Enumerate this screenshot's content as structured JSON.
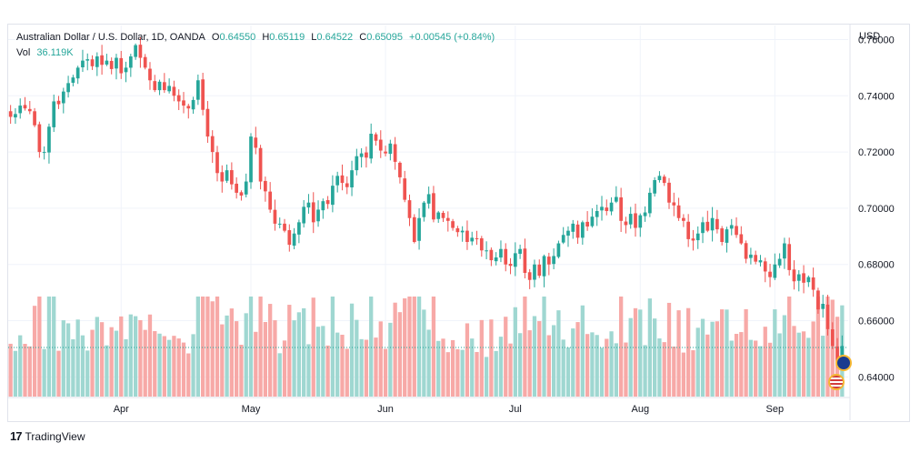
{
  "header": {
    "symbol": "Australian Dollar / U.S. Dollar, 1D, OANDA",
    "o_label": "O",
    "o_value": "0.64550",
    "h_label": "H",
    "h_value": "0.65119",
    "l_label": "L",
    "l_value": "0.64522",
    "c_label": "C",
    "c_value": "0.65095",
    "change": "+0.00545 (+0.84%)",
    "vol_label": "Vol",
    "vol_value": "36.119K"
  },
  "currency": "USD",
  "brand": {
    "logo": "17",
    "name": "TradingView"
  },
  "colors": {
    "up": "#26a69a",
    "down": "#ef5350",
    "vol_up": "#9fd7d1",
    "vol_down": "#f7a9a7",
    "grid": "#f0f3fa",
    "axis_text": "#131722"
  },
  "chart_data": {
    "type": "candlestick",
    "title": "Australian Dollar / U.S. Dollar, 1D, OANDA",
    "ylim": [
      0.633,
      0.765
    ],
    "y_ticks": [
      "0.76000",
      "0.74000",
      "0.72000",
      "0.70000",
      "0.68000",
      "0.66000",
      "0.64000"
    ],
    "x_ticks": [
      {
        "label": "Apr",
        "index": 23
      },
      {
        "label": "May",
        "index": 50
      },
      {
        "label": "Jun",
        "index": 78
      },
      {
        "label": "Jul",
        "index": 105
      },
      {
        "label": "Aug",
        "index": 131
      },
      {
        "label": "Sep",
        "index": 159
      }
    ],
    "last_price": 0.65095,
    "closes": [
      0.7325,
      0.7335,
      0.7365,
      0.7355,
      0.7345,
      0.7295,
      0.72,
      0.72,
      0.729,
      0.738,
      0.737,
      0.7415,
      0.7445,
      0.7465,
      0.75,
      0.7525,
      0.753,
      0.7505,
      0.754,
      0.751,
      0.7525,
      0.7495,
      0.7535,
      0.748,
      0.75,
      0.754,
      0.758,
      0.7535,
      0.75,
      0.7455,
      0.742,
      0.745,
      0.742,
      0.7435,
      0.74,
      0.738,
      0.7365,
      0.7355,
      0.7385,
      0.7455,
      0.735,
      0.7255,
      0.72,
      0.7125,
      0.7095,
      0.7135,
      0.7085,
      0.7055,
      0.7045,
      0.7095,
      0.7255,
      0.7215,
      0.7095,
      0.706,
      0.6995,
      0.6945,
      0.6945,
      0.692,
      0.687,
      0.691,
      0.695,
      0.7005,
      0.702,
      0.695,
      0.6995,
      0.7025,
      0.7015,
      0.708,
      0.7115,
      0.709,
      0.7075,
      0.7135,
      0.7185,
      0.7195,
      0.718,
      0.7265,
      0.724,
      0.7205,
      0.7195,
      0.723,
      0.7165,
      0.711,
      0.703,
      0.6965,
      0.688,
      0.6965,
      0.702,
      0.705,
      0.696,
      0.6985,
      0.6965,
      0.6955,
      0.693,
      0.6915,
      0.692,
      0.688,
      0.6895,
      0.689,
      0.685,
      0.685,
      0.6815,
      0.6825,
      0.6855,
      0.68,
      0.6795,
      0.684,
      0.6855,
      0.677,
      0.6745,
      0.68,
      0.676,
      0.683,
      0.68,
      0.683,
      0.6875,
      0.6905,
      0.692,
      0.6945,
      0.6895,
      0.695,
      0.6935,
      0.697,
      0.699,
      0.7005,
      0.699,
      0.702,
      0.704,
      0.6955,
      0.694,
      0.698,
      0.693,
      0.6975,
      0.6985,
      0.7055,
      0.71,
      0.7115,
      0.709,
      0.702,
      0.701,
      0.6965,
      0.6955,
      0.689,
      0.6885,
      0.691,
      0.695,
      0.692,
      0.6965,
      0.6925,
      0.688,
      0.6925,
      0.694,
      0.6905,
      0.6875,
      0.682,
      0.6835,
      0.681,
      0.6815,
      0.6775,
      0.6755,
      0.68,
      0.682,
      0.6875,
      0.678,
      0.674,
      0.6765,
      0.6735,
      0.6755,
      0.671,
      0.664,
      0.666,
      0.657,
      0.651,
      0.6455,
      0.651
    ]
  }
}
